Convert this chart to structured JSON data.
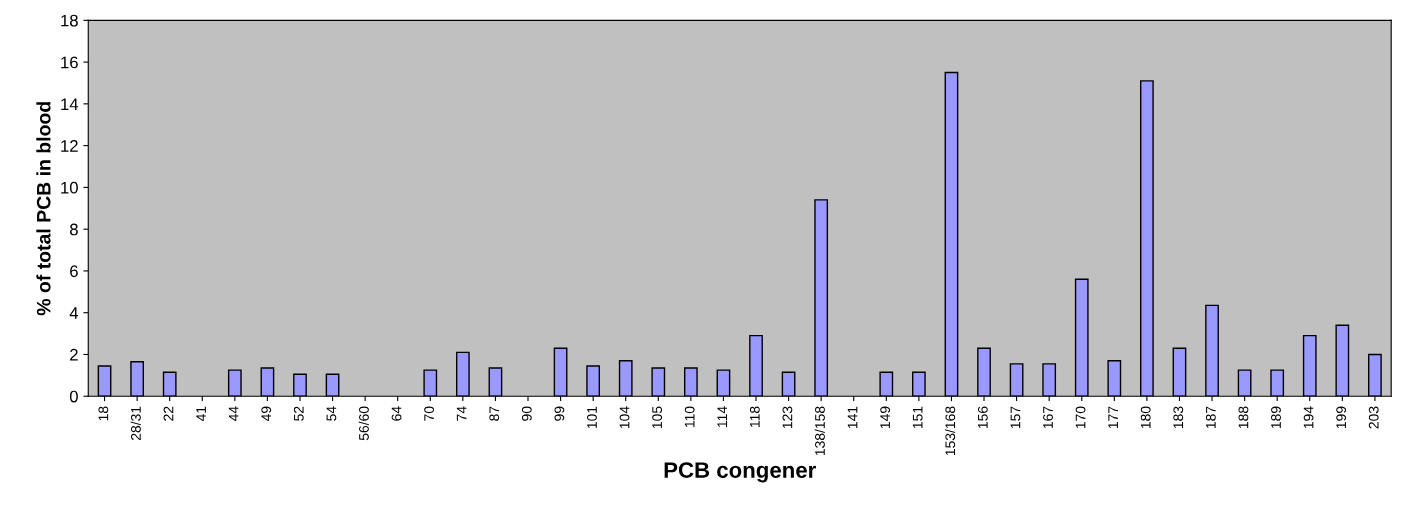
{
  "chart_data": {
    "type": "bar",
    "xlabel": "PCB congener",
    "ylabel": "% of total PCB in blood",
    "categories": [
      "18",
      "28/31",
      "22",
      "41",
      "44",
      "49",
      "52",
      "54",
      "56/60",
      "64",
      "70",
      "74",
      "87",
      "90",
      "99",
      "101",
      "104",
      "105",
      "110",
      "114",
      "118",
      "123",
      "138/158",
      "141",
      "149",
      "151",
      "153/168",
      "156",
      "157",
      "167",
      "170",
      "177",
      "180",
      "183",
      "187",
      "188",
      "189",
      "194",
      "199",
      "203"
    ],
    "values": [
      1.45,
      1.65,
      1.15,
      0,
      1.25,
      1.35,
      1.05,
      1.05,
      0,
      0,
      1.25,
      2.1,
      1.35,
      0,
      2.3,
      1.45,
      1.7,
      1.35,
      1.35,
      1.25,
      2.9,
      1.15,
      9.4,
      0,
      1.15,
      1.15,
      15.5,
      2.3,
      1.55,
      1.55,
      5.6,
      1.7,
      15.1,
      2.3,
      4.35,
      1.25,
      1.25,
      2.9,
      3.4,
      2.0
    ],
    "color": "#9999ff",
    "ylim": [
      0,
      18
    ],
    "yticks": [
      0,
      2,
      4,
      6,
      8,
      10,
      12,
      14,
      16,
      18
    ],
    "grid": false,
    "legend": false
  }
}
